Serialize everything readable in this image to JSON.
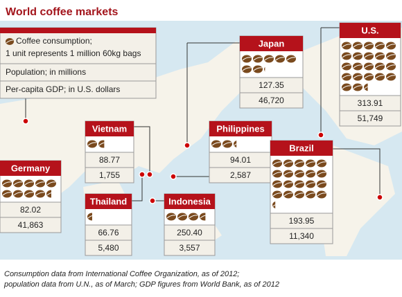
{
  "title": "World coffee markets",
  "legend": {
    "consumption": [
      "Coffee consumption;",
      "1 unit represents 1 million 60kg bags"
    ],
    "population": "Population; in millions",
    "gdp": "Per-capita GDP; in U.S. dollars"
  },
  "countries": [
    {
      "name": "Japan",
      "consumption": 7.1,
      "population": "127.35",
      "gdp": "46,720"
    },
    {
      "name": "U.S.",
      "consumption": 22.4,
      "population": "313.91",
      "gdp": "51,749"
    },
    {
      "name": "Philippines",
      "consumption": 2.3,
      "population": "94.01",
      "gdp": "2,587"
    },
    {
      "name": "Brazil",
      "consumption": 20.3,
      "population": "193.95",
      "gdp": "11,340"
    },
    {
      "name": "Vietnam",
      "consumption": 1.6,
      "population": "88.77",
      "gdp": "1,755"
    },
    {
      "name": "Germany",
      "consumption": 9.5,
      "population": "82.02",
      "gdp": "41,863"
    },
    {
      "name": "Thailand",
      "consumption": 0.5,
      "population": "66.76",
      "gdp": "5,480"
    },
    {
      "name": "Indonesia",
      "consumption": 3.6,
      "population": "250.40",
      "gdp": "3,557"
    }
  ],
  "footnote": [
    "Consumption data from International Coffee Organization, as of 2012;",
    "population data from U.N., as of March; GDP figures from World Bank, as of 2012"
  ]
}
